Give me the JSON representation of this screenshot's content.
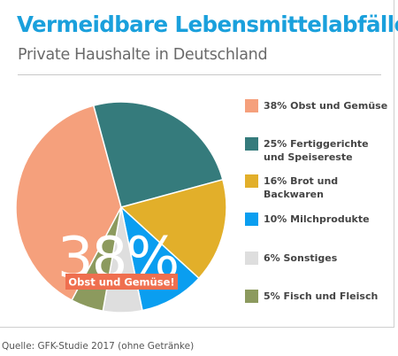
{
  "header": {
    "title": "Vermeidbare Lebensmittelabfälle",
    "subtitle": "Private Haushalte in Deutschland"
  },
  "chart_data": {
    "type": "pie",
    "categories": [
      "Obst und Gemüse",
      "Fertiggerichte und Speisereste",
      "Brot und Backwaren",
      "Milchprodukte",
      "Sonstiges",
      "Fisch und Fleisch"
    ],
    "values": [
      38,
      25,
      16,
      10,
      6,
      5
    ],
    "colors": [
      "#f5a07c",
      "#357b7c",
      "#e2af2a",
      "#0a9ef0",
      "#dedede",
      "#8c9a5e"
    ],
    "legend": [
      [
        "38% Obst und Gemüse"
      ],
      [
        "25% Fertiggerichte",
        "und Speisereste"
      ],
      [
        "16% Brot und Backwaren"
      ],
      [
        "10% Milchprodukte"
      ],
      [
        "6% Sonstiges"
      ],
      [
        "5% Fisch und Fleisch"
      ]
    ],
    "legend_position": "right",
    "callout": {
      "value_text": "38%",
      "label_text": "Obst und Gemüse!",
      "label_bg": "#ef6f4f"
    }
  },
  "footer": {
    "source": "Quelle: GFK-Studie 2017 (ohne Getränke)"
  }
}
